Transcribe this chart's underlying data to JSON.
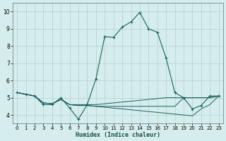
{
  "xlabel": "Humidex (Indice chaleur)",
  "x_ticks": [
    0,
    1,
    2,
    3,
    4,
    5,
    6,
    7,
    8,
    9,
    10,
    11,
    12,
    13,
    14,
    15,
    16,
    17,
    18,
    19,
    20,
    21,
    22,
    23
  ],
  "ylim": [
    3.5,
    10.5
  ],
  "xlim": [
    -0.5,
    23.5
  ],
  "yticks": [
    4,
    5,
    6,
    7,
    8,
    9,
    10
  ],
  "bg_color": "#d6eded",
  "grid_color": "#b0d0d0",
  "line_color": "#1a6060",
  "series": [
    [
      5.3,
      5.2,
      5.1,
      4.6,
      4.6,
      5.0,
      4.4,
      3.75,
      4.6,
      6.1,
      8.55,
      8.5,
      9.1,
      9.4,
      9.95,
      9.0,
      8.8,
      7.3,
      5.3,
      5.0,
      4.35,
      4.55,
      5.1,
      5.1
    ],
    [
      5.3,
      5.2,
      5.1,
      4.7,
      4.65,
      4.9,
      4.6,
      4.6,
      4.6,
      4.6,
      4.65,
      4.7,
      4.75,
      4.8,
      4.85,
      4.9,
      4.95,
      5.0,
      5.0,
      5.0,
      5.0,
      5.0,
      5.0,
      5.1
    ],
    [
      5.3,
      5.2,
      5.1,
      4.7,
      4.65,
      4.9,
      4.6,
      4.55,
      4.55,
      4.5,
      4.45,
      4.4,
      4.35,
      4.3,
      4.25,
      4.2,
      4.15,
      4.1,
      4.05,
      4.0,
      3.95,
      4.35,
      4.6,
      5.1
    ],
    [
      5.3,
      5.2,
      5.1,
      4.7,
      4.65,
      4.9,
      4.6,
      4.55,
      4.55,
      4.5,
      4.5,
      4.5,
      4.5,
      4.5,
      4.5,
      4.5,
      4.5,
      4.5,
      4.5,
      5.0,
      5.0,
      5.0,
      5.0,
      5.1
    ]
  ]
}
